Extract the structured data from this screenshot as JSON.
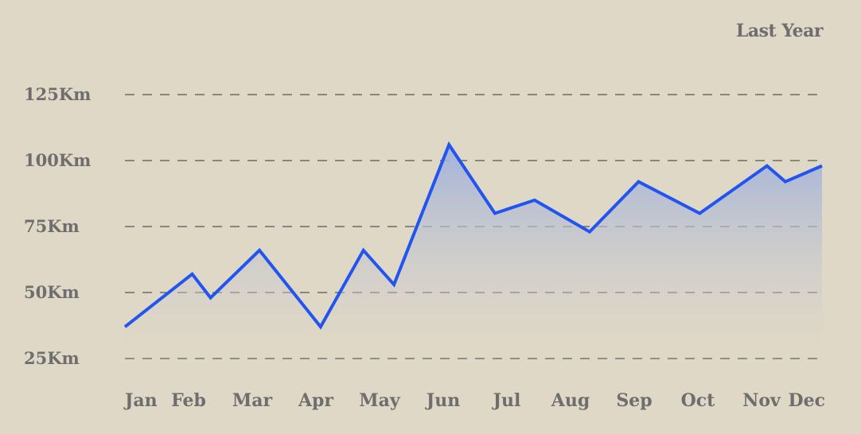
{
  "period_label": "Last Year",
  "chart_data": {
    "type": "area",
    "title": "",
    "xlabel": "",
    "ylabel": "",
    "ylim": [
      15,
      130
    ],
    "y_ticks": [
      {
        "value": 125,
        "label": "125Km"
      },
      {
        "value": 100,
        "label": "100Km"
      },
      {
        "value": 75,
        "label": "75Km"
      },
      {
        "value": 50,
        "label": "50Km"
      },
      {
        "value": 25,
        "label": "25Km"
      }
    ],
    "grid": "horizontal dashed",
    "legend": "none",
    "months": [
      "Jan",
      "Feb",
      "Mar",
      "Apr",
      "May",
      "Jun",
      "Jul",
      "Aug",
      "Sep",
      "Oct",
      "Nov",
      "Dec"
    ],
    "series": [
      {
        "x": [
          0,
          1.1,
          1.4,
          2.2,
          3.2,
          3.9,
          4.4,
          5.3,
          6.05,
          6.7,
          7.6,
          8.4,
          9.4,
          10.5,
          10.8,
          11.4
        ],
        "values": [
          37,
          57,
          48,
          66,
          37,
          66,
          53,
          106,
          80,
          85,
          73,
          92,
          80,
          98,
          92,
          98
        ]
      }
    ],
    "colors": {
      "line": "#2255f0",
      "fill_top": "#9fb0dc",
      "fill_bottom": "#e0d8c6",
      "grid": "#555555",
      "background": "#e0d8c6"
    }
  }
}
